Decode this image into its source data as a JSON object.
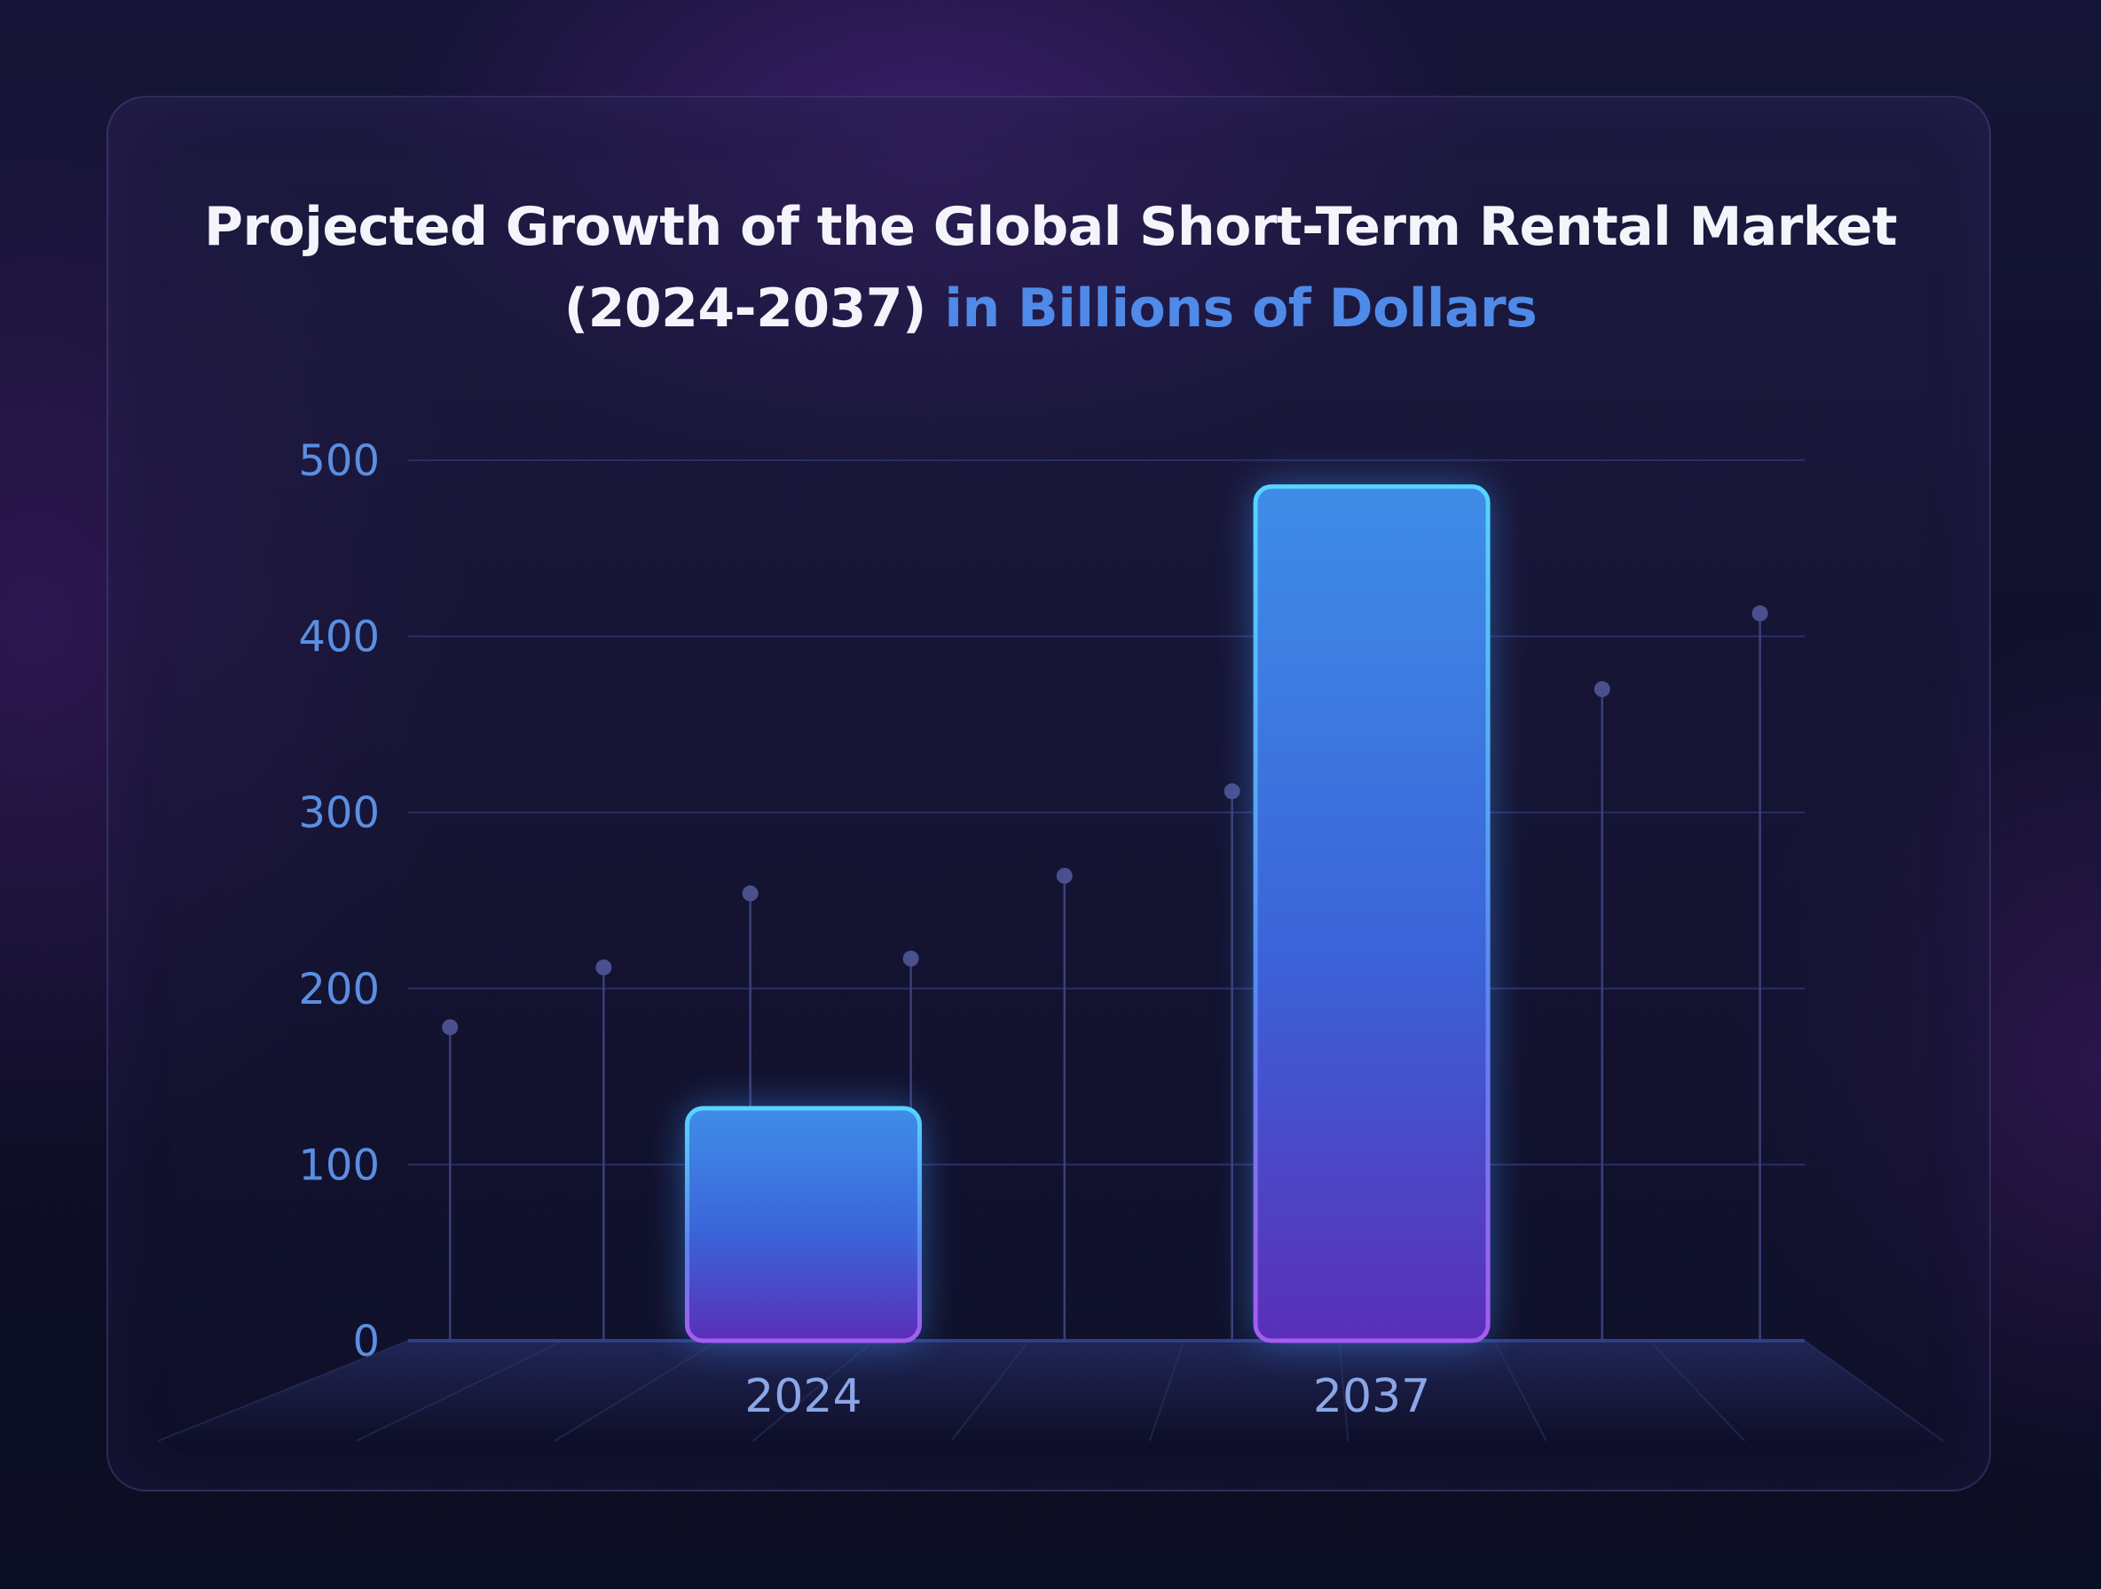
{
  "title": {
    "line1": "Projected Growth of the Global Short-Term Rental Market",
    "line2_plain": "(2024-2037)",
    "line2_accent": "in Billions of Dollars"
  },
  "colors": {
    "background": "#0f1029",
    "title_text": "#f4f4fb",
    "title_accent": "#4f8ae8",
    "axis_tick_text": "#5a8ee0",
    "bar_top": "#4fc3f7",
    "bar_mid": "#3d6fe0",
    "bar_bottom": "#7a3cd8"
  },
  "chart_data": {
    "type": "bar",
    "title": "Projected Growth of the Global Short-Term Rental Market (2024-2037) in Billions of Dollars",
    "xlabel": "",
    "ylabel": "",
    "categories": [
      "2024",
      "2037"
    ],
    "values": [
      132,
      485
    ],
    "ylim": [
      0,
      500
    ],
    "yticks": [
      "0",
      "100",
      "200",
      "300",
      "400",
      "500"
    ],
    "grid": true,
    "legend": "none",
    "decorative_pins": [
      {
        "x": 0.03,
        "value": 178
      },
      {
        "x": 0.14,
        "value": 212
      },
      {
        "x": 0.245,
        "value": 254
      },
      {
        "x": 0.36,
        "value": 217
      },
      {
        "x": 0.47,
        "value": 264
      },
      {
        "x": 0.59,
        "value": 312
      },
      {
        "x": 0.855,
        "value": 370
      },
      {
        "x": 0.968,
        "value": 413
      }
    ]
  }
}
